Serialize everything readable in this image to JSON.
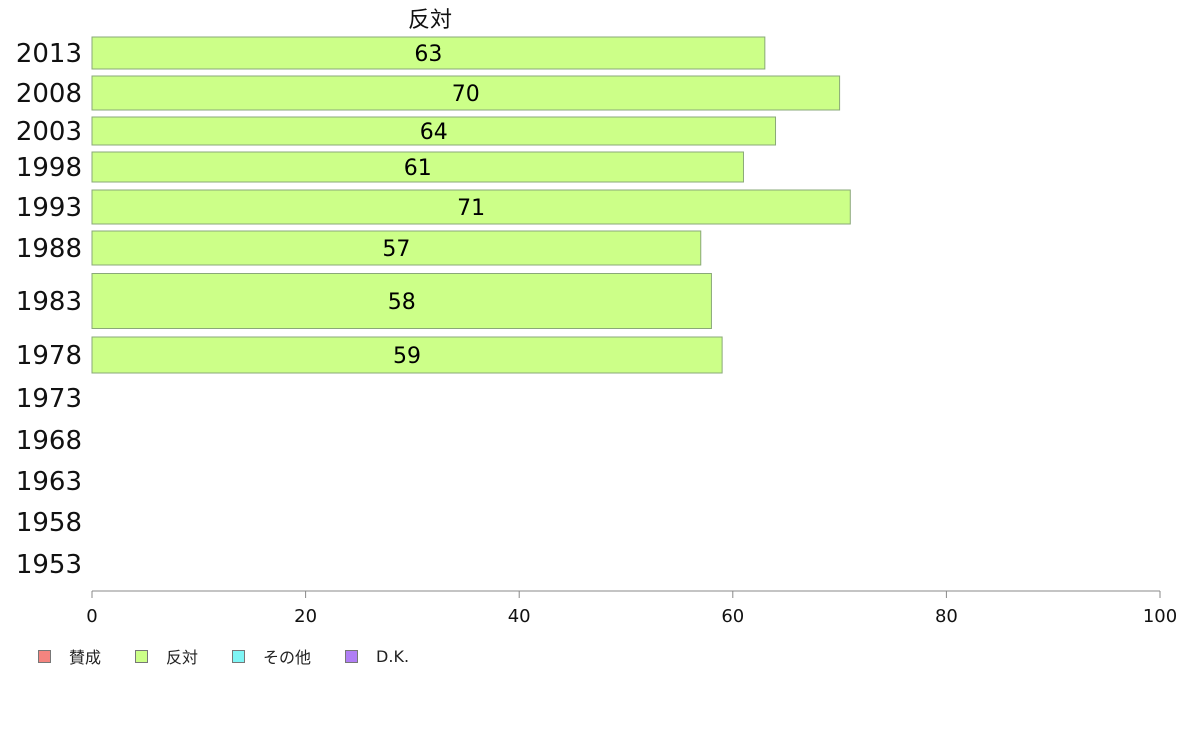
{
  "chart_data": {
    "type": "bar",
    "orientation": "horizontal",
    "title": "反対",
    "categories": [
      "2013",
      "2008",
      "2003",
      "1998",
      "1993",
      "1988",
      "1983",
      "1978",
      "1973",
      "1968",
      "1963",
      "1958",
      "1953"
    ],
    "series": [
      {
        "name": "反対",
        "color": "#ccff88",
        "values": [
          63,
          70,
          64,
          61,
          71,
          57,
          58,
          59,
          null,
          null,
          null,
          null,
          null
        ]
      }
    ],
    "xlim": [
      0,
      100
    ],
    "xticks": [
      "0",
      "20",
      "40",
      "60",
      "80",
      "100"
    ],
    "grid": false
  },
  "legend": [
    {
      "label": "賛成",
      "color": "#f4847f"
    },
    {
      "label": "反対",
      "color": "#ccff88"
    },
    {
      "label": "その他",
      "color": "#7ef5f5"
    },
    {
      "label": "D.K.",
      "color": "#b07ef5"
    }
  ]
}
